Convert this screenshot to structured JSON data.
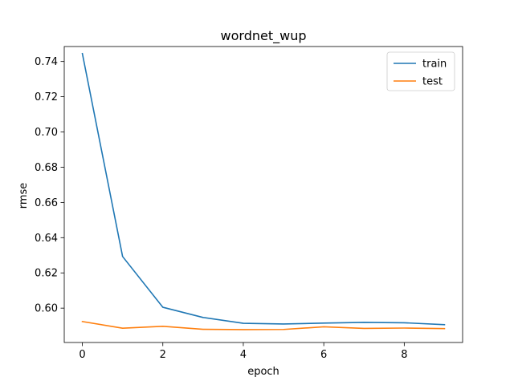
{
  "chart_data": {
    "type": "line",
    "title": "wordnet_wup",
    "xlabel": "epoch",
    "ylabel": "rmse",
    "xlim": [
      -0.45,
      9.45
    ],
    "ylim": [
      0.5805,
      0.7485
    ],
    "xticks": [
      0,
      2,
      4,
      6,
      8
    ],
    "yticks": [
      0.6,
      0.62,
      0.64,
      0.66,
      0.68,
      0.7,
      0.72,
      0.74
    ],
    "x": [
      0,
      1,
      2,
      3,
      4,
      5,
      6,
      7,
      8,
      9
    ],
    "series": [
      {
        "name": "train",
        "color": "#1f77b4",
        "values": [
          0.7445,
          0.6293,
          0.6005,
          0.5947,
          0.5914,
          0.591,
          0.5915,
          0.5919,
          0.5917,
          0.5906
        ]
      },
      {
        "name": "test",
        "color": "#ff7f0e",
        "values": [
          0.5924,
          0.5886,
          0.5897,
          0.588,
          0.5878,
          0.5879,
          0.5894,
          0.5885,
          0.5887,
          0.5884
        ]
      }
    ],
    "legend": "top-right",
    "grid": false
  }
}
